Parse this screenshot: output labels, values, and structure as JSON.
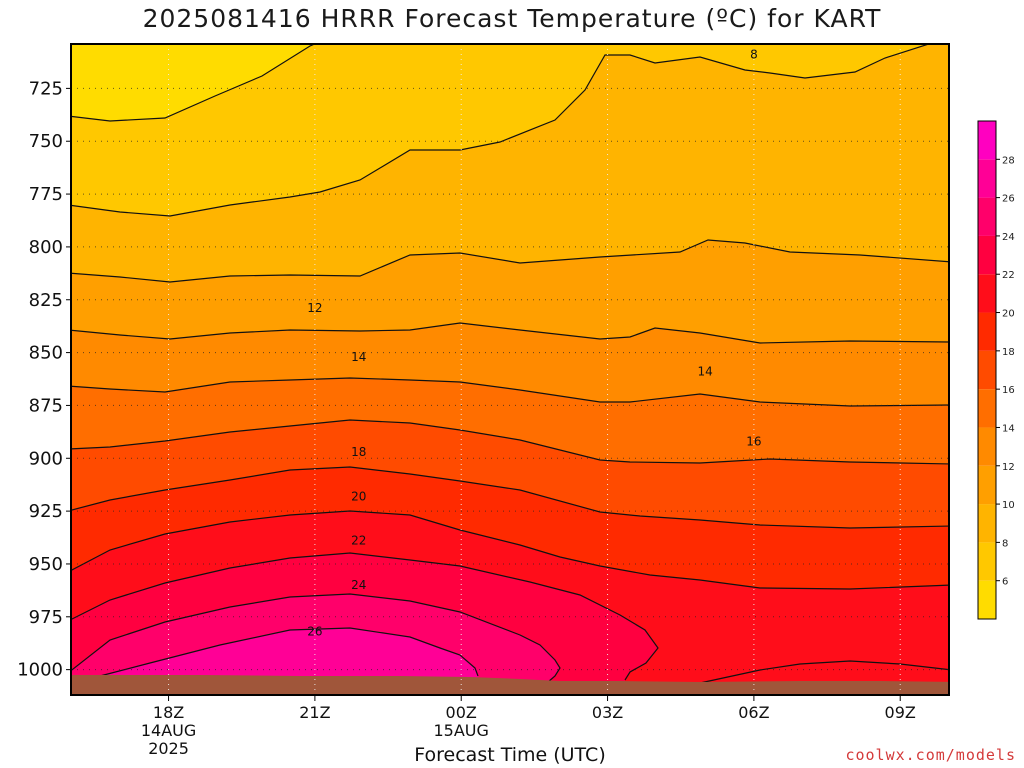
{
  "chart_data": {
    "type": "heatmap",
    "title": "2025081416 HRRR Forecast Temperature (ºC) for KART",
    "xlabel": "Forecast Time (UTC)",
    "ylabel": "",
    "x_ticks": [
      {
        "label": "18Z",
        "sub1": "14AUG",
        "sub2": "2025",
        "hour": 18
      },
      {
        "label": "21Z",
        "sub1": "",
        "sub2": "",
        "hour": 21
      },
      {
        "label": "00Z",
        "sub1": "15AUG",
        "sub2": "",
        "hour": 24
      },
      {
        "label": "03Z",
        "sub1": "",
        "sub2": "",
        "hour": 27
      },
      {
        "label": "06Z",
        "sub1": "",
        "sub2": "",
        "hour": 30
      },
      {
        "label": "09Z",
        "sub1": "",
        "sub2": "",
        "hour": 33
      }
    ],
    "xlim": [
      16,
      34
    ],
    "y_ticks": [
      725,
      750,
      775,
      800,
      825,
      850,
      875,
      900,
      925,
      950,
      975,
      1000
    ],
    "ylim": [
      704,
      1012
    ],
    "colorbar": {
      "ticks": [
        6,
        8,
        10,
        12,
        14,
        16,
        18,
        20,
        22,
        24,
        26,
        28
      ],
      "colors": [
        "#ffdc00",
        "#ffc800",
        "#ffb400",
        "#ff9f00",
        "#ff8a00",
        "#ff6e00",
        "#ff4b00",
        "#ff2a00",
        "#ff0d1a",
        "#ff0040",
        "#ff006a",
        "#ff0096",
        "#ff00c0"
      ]
    },
    "contour_labels": [
      {
        "text": "8",
        "hour": 30.0,
        "pres": 709
      },
      {
        "text": "12",
        "hour": 21.0,
        "pres": 829
      },
      {
        "text": "14",
        "hour": 21.9,
        "pres": 852
      },
      {
        "text": "14",
        "hour": 29.0,
        "pres": 859
      },
      {
        "text": "16",
        "hour": 30.0,
        "pres": 892
      },
      {
        "text": "18",
        "hour": 21.9,
        "pres": 897
      },
      {
        "text": "20",
        "hour": 21.9,
        "pres": 918
      },
      {
        "text": "22",
        "hour": 21.9,
        "pres": 939
      },
      {
        "text": "24",
        "hour": 21.9,
        "pres": 960
      },
      {
        "text": "26",
        "hour": 21.0,
        "pres": 982
      }
    ]
  },
  "credit": "coolwx.com/models"
}
